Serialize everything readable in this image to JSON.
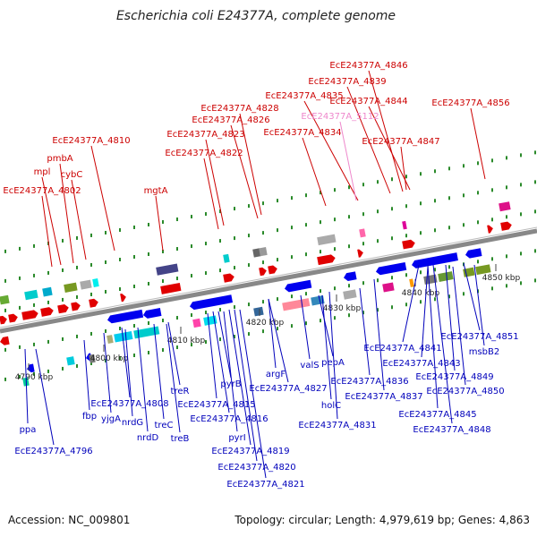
{
  "title": "Escherichia coli E24377A, complete genome",
  "footer": {
    "accession": "Accession: NC_009801",
    "summary": "Topology: circular; Length: 4,979,619 bp; Genes: 4,863"
  },
  "colors": {
    "forward_label": "#cc0000",
    "reverse_label": "#0000bb",
    "pseudo_label": "#ee88cc",
    "backbone": "#888888",
    "tick": "#2a8a2a"
  },
  "scale": {
    "unit": "kbp",
    "labels": [
      "4790 kbp",
      "4800 kbp",
      "4810 kbp",
      "4820 kbp",
      "4830 kbp",
      "4840 kbp",
      "4850 kbp"
    ]
  },
  "forward_labels": [
    "EcE24377A_4846",
    "EcE24377A_4839",
    "EcE24377A_4835",
    "EcE24377A_4844",
    "EcE24377A_4856",
    "EcE24377A_4828",
    "EcE24377A_4826",
    "EcE24377A_5112",
    "EcE24377A_4823",
    "EcE24377A_4834",
    "EcE24377A_4810",
    "EcE24377A_4847",
    "EcE24377A_4822",
    "pmbA",
    "mpl",
    "cybC",
    "EcE24377A_4802",
    "mgtA"
  ],
  "reverse_labels": [
    "EcE24377A_4851",
    "EcE24377A_4841",
    "msbB2",
    "EcE24377A_4843",
    "EcE24377A_4836",
    "EcE24377A_4849",
    "valS",
    "pepA",
    "argF",
    "EcE24377A_4837",
    "EcE24377A_4850",
    "EcE24377A_4827",
    "treR",
    "pyrB",
    "EcE24377A_4808",
    "EcE24377A_4815",
    "holC",
    "EcE24377A_4845",
    "fbp",
    "yjgA",
    "nrdG",
    "treC",
    "EcE24377A_4816",
    "EcE24377A_4831",
    "EcE24377A_4848",
    "ppa",
    "nrdD",
    "treB",
    "pyrI",
    "EcE24377A_4796",
    "EcE24377A_4819",
    "EcE24377A_4820",
    "EcE24377A_4821"
  ]
}
